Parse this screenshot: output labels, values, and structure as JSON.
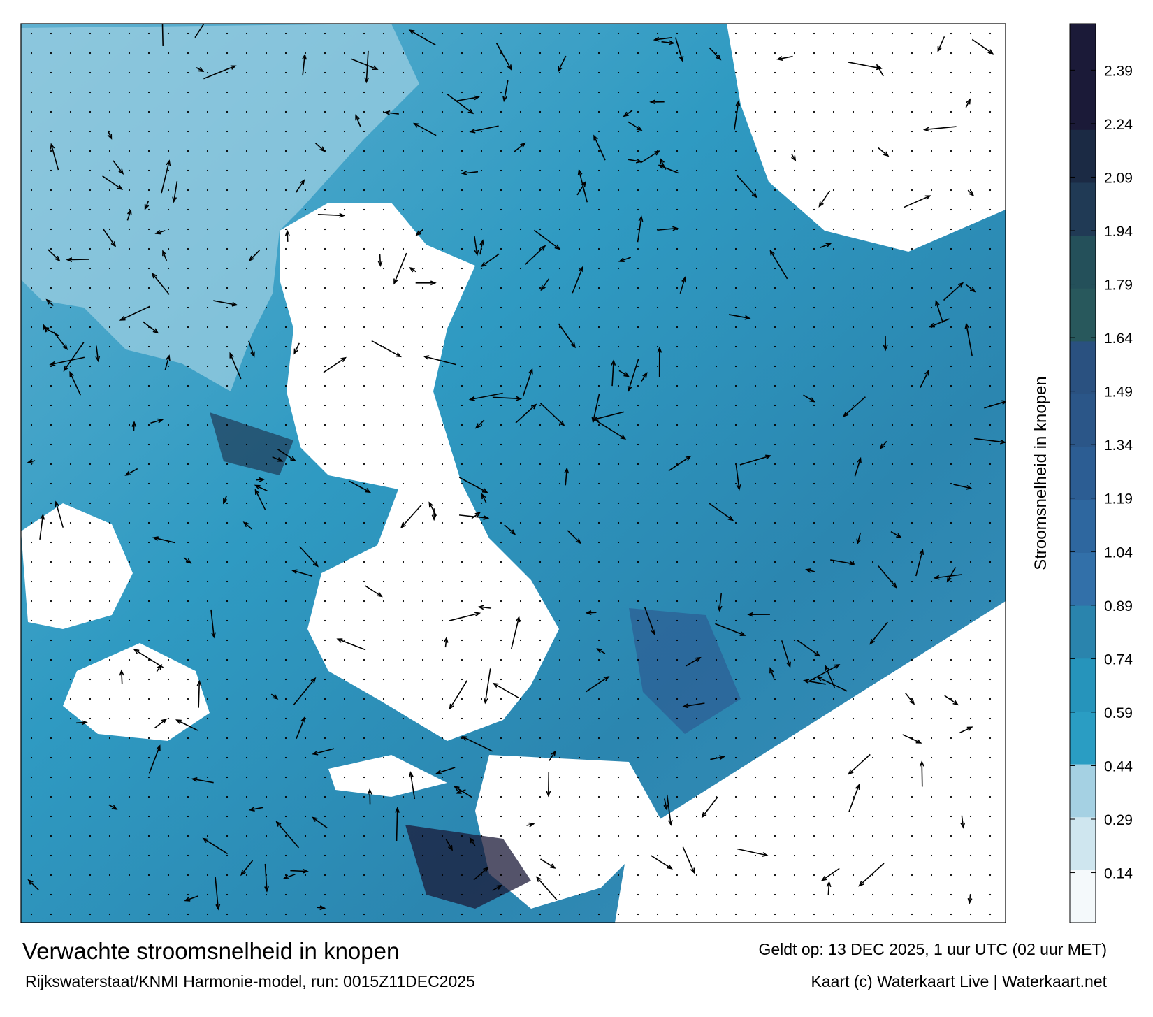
{
  "chart_data": {
    "type": "map",
    "colorbar": {
      "label": "Stroomsnelheid in knopen",
      "lim": [
        0,
        2.52
      ],
      "ticks": [
        0.14,
        0.29,
        0.44,
        0.59,
        0.74,
        0.89,
        1.04,
        1.19,
        1.34,
        1.49,
        1.64,
        1.79,
        1.94,
        2.09,
        2.24,
        2.39
      ],
      "colors": [
        "#f4f9fb",
        "#cfe6ef",
        "#a5d1e3",
        "#2a9dc3",
        "#2694bb",
        "#2a84ad",
        "#3270a9",
        "#2e679f",
        "#2c5d93",
        "#2b5688",
        "#2a5180",
        "#28585c",
        "#24505a",
        "#203a55",
        "#1b2a44",
        "#1b1a38",
        "#1b1a38"
      ]
    },
    "title": "Verwachte stroomsnelheid in knopen",
    "subtitle": "Rijkswaterstaat/KNMI Harmonie-model, run: 0015Z11DEC2025",
    "valid": "Geldt op: 13 DEC 2025, 1 uur UTC (02 uur MET)",
    "credit": "Kaart (c) Waterkaart Live | Waterkaart.net"
  }
}
